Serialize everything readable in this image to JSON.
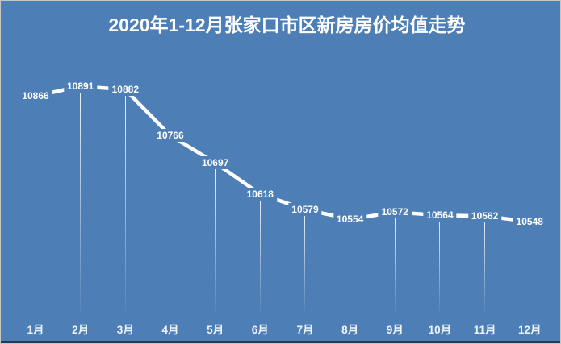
{
  "title": "2020年1-12月张家口市区新房房价均值走势",
  "chart_data": {
    "type": "line",
    "title": "2020年1-12月张家口市区新房房价均值走势",
    "categories": [
      "1月",
      "2月",
      "3月",
      "4月",
      "5月",
      "6月",
      "7月",
      "8月",
      "9月",
      "10月",
      "11月",
      "12月"
    ],
    "values": [
      10866,
      10891,
      10882,
      10766,
      10697,
      10618,
      10579,
      10554,
      10572,
      10564,
      10562,
      10548
    ],
    "xlabel": "",
    "ylabel": "",
    "ylim": [
      10500,
      10950
    ],
    "grid": false,
    "legend": "none",
    "data_labels": "every point, white bold, centered on point",
    "drop_lines": "thin white vertical lines from each point fading toward baseline",
    "line_color": "#ffffff",
    "line_width": 4.5,
    "background_color": "#4e7eb6",
    "title_color": "#ffffff",
    "label_color": "#ffffff"
  }
}
